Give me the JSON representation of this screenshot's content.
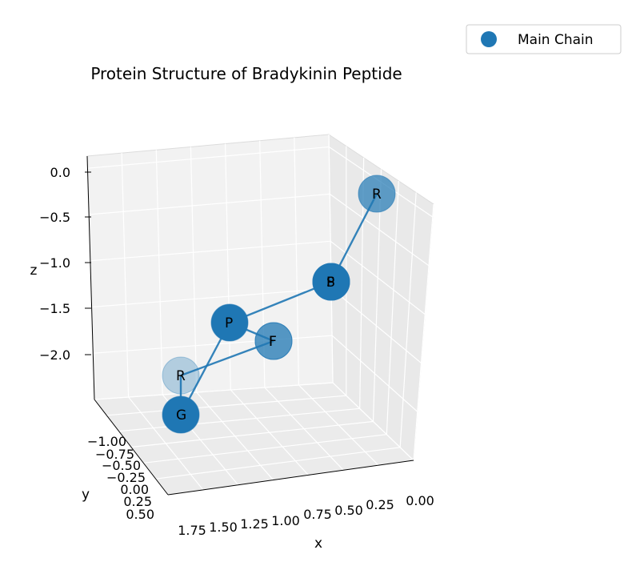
{
  "chart_data": {
    "type": "scatter",
    "projection": "3d",
    "title": "Protein Structure of Bradykinin Peptide",
    "xlabel": "x",
    "ylabel": "y",
    "zlabel": "z",
    "x_ticks": [
      "1.75",
      "1.50",
      "1.25",
      "1.00",
      "0.75",
      "0.50",
      "0.25",
      "0.00"
    ],
    "y_ticks": [
      "−1.00",
      "−0.75",
      "−0.50",
      "−0.25",
      "0.00",
      "0.25",
      "0.50"
    ],
    "z_ticks": [
      "0.0",
      "−0.5",
      "−1.0",
      "−1.5",
      "−2.0"
    ],
    "legend": {
      "entries": [
        "Main Chain"
      ],
      "placement": "top-right"
    },
    "grid": true,
    "series": [
      {
        "name": "Main Chain",
        "color": "#1f77b4",
        "points": [
          {
            "label": "R",
            "depth": "far"
          },
          {
            "label": "P",
            "depth": "near"
          },
          {
            "label": "P",
            "depth": "near"
          },
          {
            "label": "G",
            "depth": "near"
          },
          {
            "label": "F",
            "depth": "mid"
          },
          {
            "label": "S",
            "depth": "near"
          },
          {
            "label": "P",
            "depth": "near"
          },
          {
            "label": "F",
            "depth": "mid"
          },
          {
            "label": "R",
            "depth": "mid"
          }
        ]
      }
    ]
  }
}
